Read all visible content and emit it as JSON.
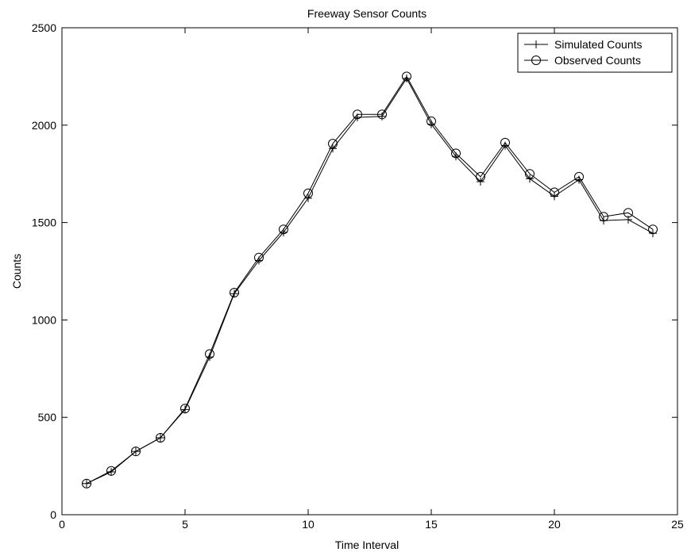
{
  "chart_data": {
    "type": "line",
    "title": "Freeway Sensor Counts",
    "xlabel": "Time Interval",
    "ylabel": "Counts",
    "xlim": [
      0,
      25
    ],
    "ylim": [
      0,
      2500
    ],
    "xticks": [
      "0",
      "5",
      "10",
      "15",
      "20",
      "25"
    ],
    "yticks": [
      "0",
      "500",
      "1000",
      "1500",
      "2000",
      "2500"
    ],
    "grid": false,
    "legend_position": "top-right",
    "x": [
      1,
      2,
      3,
      4,
      5,
      6,
      7,
      8,
      9,
      10,
      11,
      12,
      13,
      14,
      15,
      16,
      17,
      18,
      19,
      20,
      21,
      22,
      23,
      24
    ],
    "series": [
      {
        "name": "Simulated Counts",
        "marker": "plus",
        "color": "#000000",
        "values": [
          160,
          220,
          325,
          395,
          540,
          810,
          1135,
          1305,
          1450,
          1625,
          1880,
          2040,
          2045,
          2240,
          2005,
          1840,
          1710,
          1895,
          1725,
          1635,
          1720,
          1510,
          1515,
          1445
        ]
      },
      {
        "name": "Observed Counts",
        "marker": "circle",
        "color": "#000000",
        "values": [
          160,
          225,
          325,
          395,
          545,
          825,
          1140,
          1320,
          1465,
          1650,
          1905,
          2055,
          2055,
          2250,
          2020,
          1855,
          1735,
          1910,
          1750,
          1655,
          1735,
          1530,
          1550,
          1465
        ]
      }
    ]
  }
}
